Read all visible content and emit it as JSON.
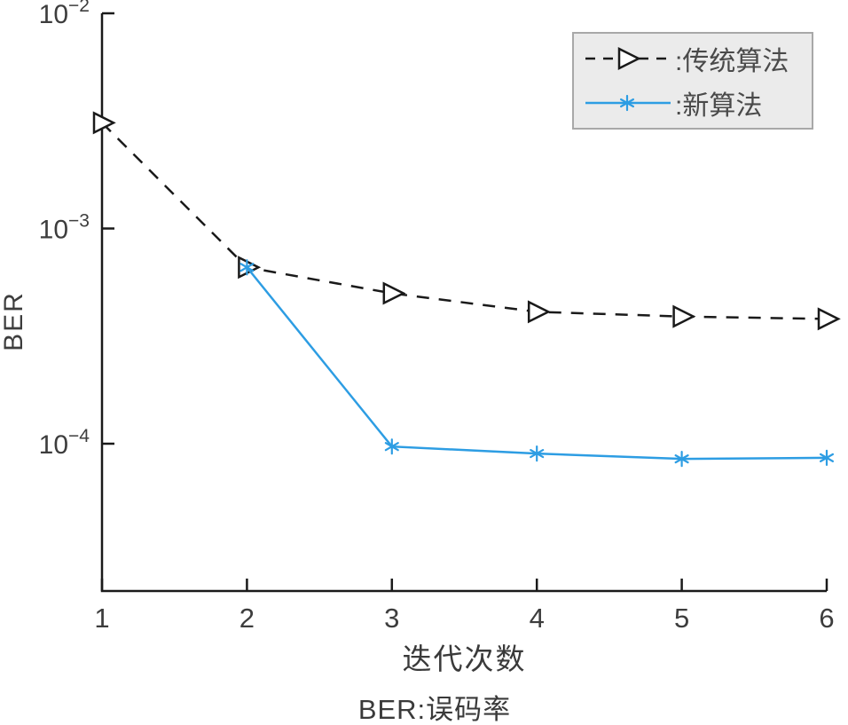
{
  "chart_data": {
    "type": "line",
    "title": "",
    "xlabel": "迭代次数",
    "ylabel": "BER",
    "caption": "BER:误码率",
    "x_ticks": [
      1,
      2,
      3,
      4,
      5,
      6
    ],
    "xlim": [
      1,
      6
    ],
    "y_scale": "log",
    "ylim": [
      2e-05,
      0.01
    ],
    "y_ticks": [
      {
        "label": "10⁻²",
        "exp": "−2",
        "value": 0.01
      },
      {
        "label": "10⁻³",
        "exp": "−3",
        "value": 0.001
      },
      {
        "label": "10⁻⁴",
        "exp": "−4",
        "value": 0.0001
      }
    ],
    "grid": false,
    "legend_position": "top-right",
    "legend_style": {
      "background": "#ebebeb",
      "border": "#a8a8a8"
    },
    "axis_color": "#1a1a1a",
    "text_color": "#3d3d3d",
    "series": [
      {
        "key": "traditional",
        "name": "传统算法",
        "legend_label": ":传统算法",
        "color": "#1a1a1a",
        "line_style": "dashed",
        "marker": "triangle-right",
        "x": [
          1,
          2,
          3,
          4,
          5,
          6
        ],
        "y": [
          0.0031,
          0.00066,
          0.0005,
          0.00041,
          0.00039,
          0.00038
        ]
      },
      {
        "key": "new",
        "name": "新算法",
        "legend_label": ":新算法",
        "color": "#2d9de3",
        "line_style": "solid",
        "marker": "asterisk",
        "x": [
          2,
          3,
          4,
          5,
          6
        ],
        "y": [
          0.00066,
          9.7e-05,
          9e-05,
          8.5e-05,
          8.6e-05
        ]
      }
    ]
  }
}
